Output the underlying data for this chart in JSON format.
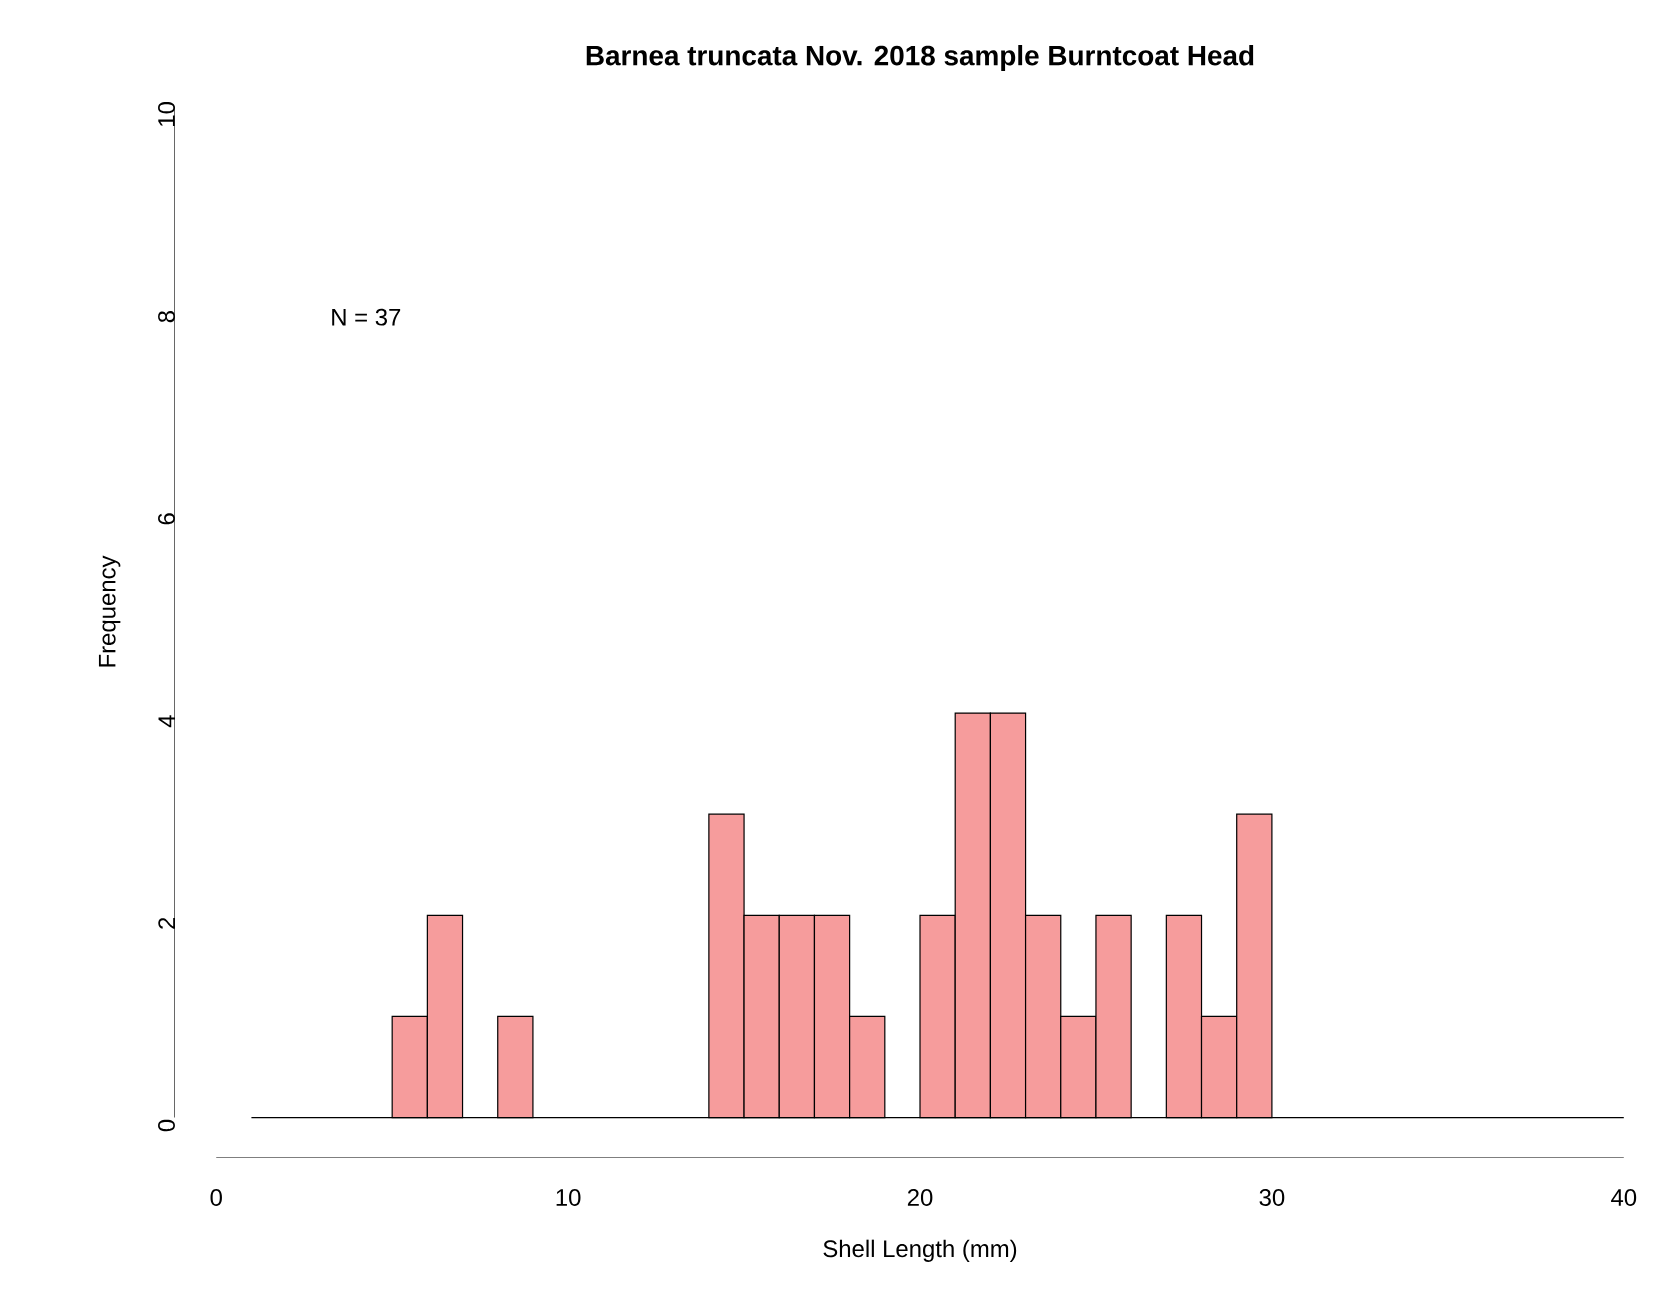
{
  "chart_data": {
    "type": "histogram",
    "title": "Barnea truncata Nov. 2018 sample Burntcoat Head",
    "xlabel": "Shell Length (mm)",
    "ylabel": "Frequency",
    "bins": [
      1,
      2,
      3,
      4,
      5,
      6,
      7,
      8,
      9,
      10,
      11,
      12,
      13,
      14,
      15,
      16,
      17,
      18,
      19,
      20,
      21,
      22,
      23,
      24,
      25,
      26,
      27,
      28,
      29,
      30,
      31,
      32,
      33,
      34,
      35,
      36,
      37,
      38,
      39,
      40
    ],
    "values": [
      0,
      0,
      0,
      0,
      1,
      2,
      0,
      1,
      0,
      0,
      0,
      0,
      0,
      3,
      2,
      2,
      2,
      1,
      0,
      2,
      4,
      4,
      2,
      1,
      2,
      0,
      2,
      1,
      3,
      0,
      0,
      0,
      0,
      0,
      0,
      0,
      0,
      0,
      0
    ],
    "color": "#f69c9c",
    "xlim": [
      0,
      40
    ],
    "xticks": [
      0,
      10,
      20,
      30,
      40
    ],
    "ylim": [
      0,
      10
    ],
    "yticks": [
      0,
      2,
      4,
      6,
      8,
      10
    ],
    "annotations": [
      "N =  37"
    ]
  }
}
